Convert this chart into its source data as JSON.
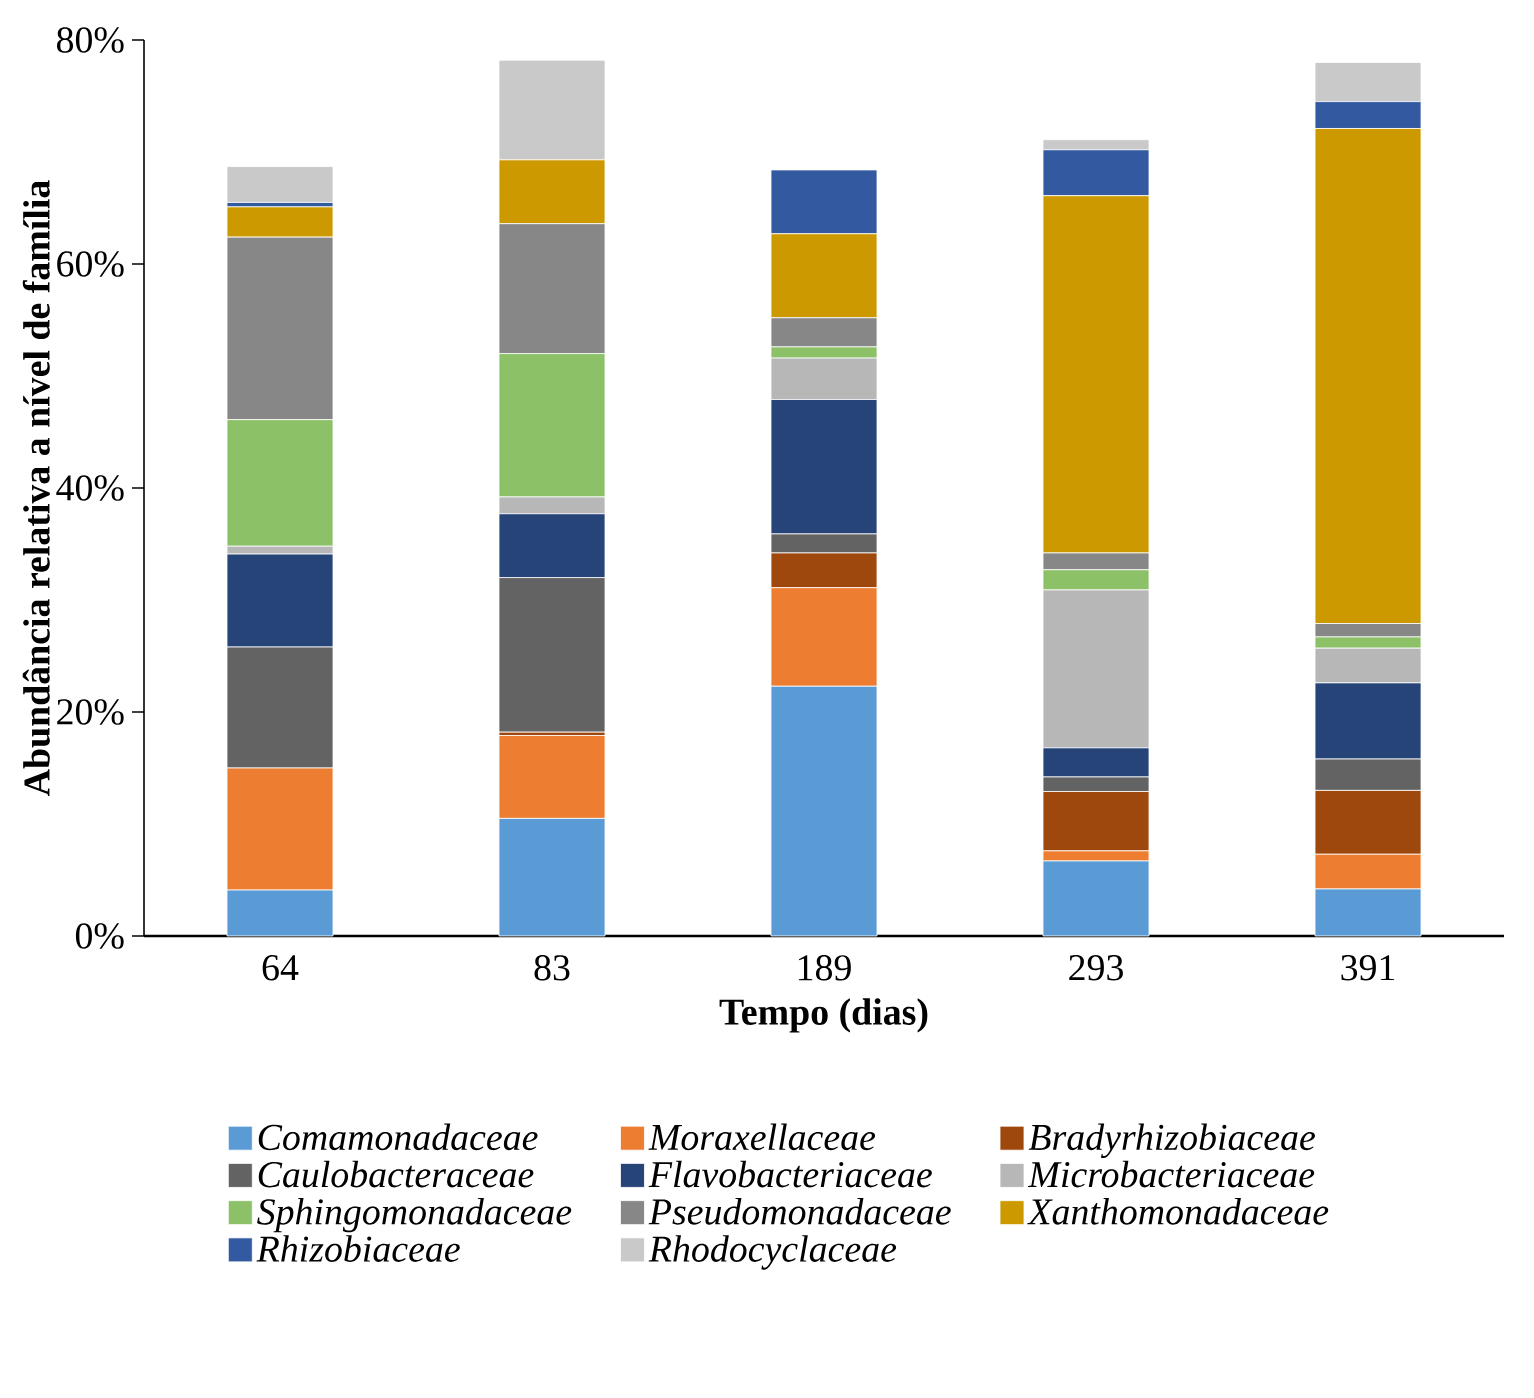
{
  "chart_data": {
    "type": "bar",
    "stacked": true,
    "xlabel": "Tempo (dias)",
    "ylabel": "Abundância relativa a nível de família",
    "categories": [
      "64",
      "83",
      "189",
      "293",
      "391"
    ],
    "ylim": [
      0,
      80
    ],
    "yticks": [
      {
        "value": 0,
        "label": "0%"
      },
      {
        "value": 20,
        "label": "20%"
      },
      {
        "value": 40,
        "label": "40%"
      },
      {
        "value": 60,
        "label": "60%"
      },
      {
        "value": 80,
        "label": "80%"
      }
    ],
    "legend": "bottom",
    "series": [
      {
        "name": "*Comamonadaceae*",
        "color": "#5b9bd5",
        "values": [
          4.1,
          10.5,
          22.3,
          6.7,
          4.2
        ]
      },
      {
        "name": "*Moraxellaceae*",
        "color": "#ed7d31",
        "values": [
          10.9,
          7.4,
          8.8,
          0.9,
          3.1
        ]
      },
      {
        "name": "*Bradyrhizobiaceae*",
        "color": "#9e480e",
        "values": [
          0,
          0.3,
          3.1,
          5.3,
          5.7
        ]
      },
      {
        "name": "*Caulobacteraceae*",
        "color": "#636363",
        "values": [
          10.8,
          13.8,
          1.7,
          1.3,
          2.8
        ]
      },
      {
        "name": "*Flavobacteriaceae*",
        "color": "#264478",
        "values": [
          8.3,
          5.7,
          12.0,
          2.6,
          6.8
        ]
      },
      {
        "name": "*Microbacteriaceae*",
        "color": "#b7b7b7",
        "values": [
          0.7,
          1.5,
          3.7,
          14.1,
          3.1
        ]
      },
      {
        "name": "*Sphingomonadaceae*",
        "color": "#8cc168",
        "values": [
          11.3,
          12.8,
          1.0,
          1.8,
          1.0
        ]
      },
      {
        "name": "*Pseudomonadaceae*",
        "color": "#878787",
        "values": [
          16.3,
          11.6,
          2.6,
          1.5,
          1.2
        ]
      },
      {
        "name": "*Xanthomonadaceae*",
        "color": "#cc9a00",
        "values": [
          2.7,
          5.7,
          7.5,
          31.9,
          44.2
        ]
      },
      {
        "name": "*Rhizobiaceae*",
        "color": "#335aa1",
        "values": [
          0.4,
          0,
          5.7,
          4.1,
          2.4
        ]
      },
      {
        "name": "*Rhodocyclaceae*",
        "color": "#c9c9c9",
        "values": [
          3.2,
          8.9,
          0,
          0.9,
          3.5
        ]
      }
    ]
  }
}
